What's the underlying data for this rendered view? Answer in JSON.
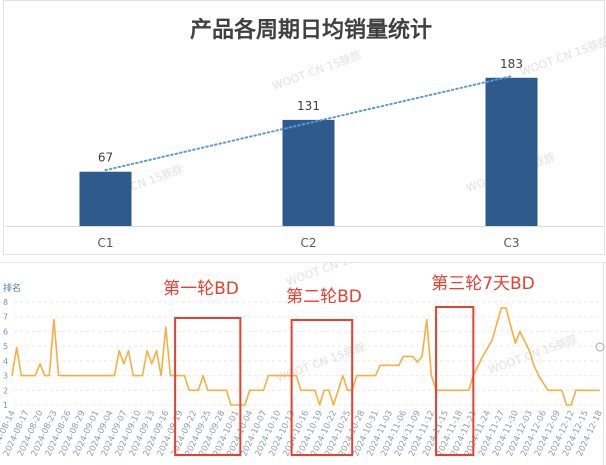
{
  "watermark": {
    "text": "WOOT CN 15豚豚"
  },
  "chart_data": [
    {
      "type": "bar",
      "title": "产品各周期日均销量统计",
      "categories": [
        "C1",
        "C2",
        "C3"
      ],
      "values": [
        67,
        131,
        183
      ],
      "data_labels": [
        "67",
        "131",
        "183"
      ],
      "ylim": [
        0,
        200
      ],
      "trendline": "linear",
      "grid": false,
      "legend": "none",
      "colors": {
        "bar": "#2e5a8c",
        "trendline": "#5b9bd5"
      }
    },
    {
      "type": "line",
      "ylabel": "排名",
      "ylim": [
        1,
        8
      ],
      "yticks": [
        "1",
        "2",
        "3",
        "4",
        "5",
        "6",
        "7",
        "8"
      ],
      "xticks": [
        "2024-08-14",
        "2024-08-17",
        "2024-08-20",
        "2024-08-23",
        "2024-08-26",
        "2024-08-29",
        "2024-09-01",
        "2024-09-04",
        "2024-09-07",
        "2024-09-10",
        "2024-09-13",
        "2024-09-16",
        "2024-09-19",
        "2024-09-22",
        "2024-09-25",
        "2024-09-28",
        "2024-10-01",
        "2024-10-04",
        "2024-10-07",
        "2024-10-10",
        "2024-10-13",
        "2024-10-16",
        "2024-10-19",
        "2024-10-22",
        "2024-10-25",
        "2024-10-28",
        "2024-10-31",
        "2024-11-03",
        "2024-11-06",
        "2024-11-09",
        "2024-11-12",
        "2024-11-15",
        "2024-11-18",
        "2024-11-21",
        "2024-11-24",
        "2024-11-27",
        "2024-11-30",
        "2024-12-03",
        "2024-12-06",
        "2024-12-09",
        "2024-12-12",
        "2024-12-15",
        "2024-12-18"
      ],
      "grid": true,
      "legend": "none",
      "series": [
        {
          "color": "#f5b041",
          "points": [
            [
              "2024-08-14",
              3
            ],
            [
              "2024-08-15",
              4.9
            ],
            [
              "2024-08-16",
              3
            ],
            [
              "2024-08-19",
              3
            ],
            [
              "2024-08-20",
              3.8
            ],
            [
              "2024-08-21",
              3
            ],
            [
              "2024-08-22",
              3
            ],
            [
              "2024-08-23",
              6.8
            ],
            [
              "2024-08-24",
              3
            ],
            [
              "2024-09-05",
              3
            ],
            [
              "2024-09-06",
              4.7
            ],
            [
              "2024-09-07",
              3.8
            ],
            [
              "2024-09-08",
              4.7
            ],
            [
              "2024-09-09",
              3
            ],
            [
              "2024-09-11",
              3
            ],
            [
              "2024-09-12",
              4.7
            ],
            [
              "2024-09-13",
              3.8
            ],
            [
              "2024-09-14",
              4.7
            ],
            [
              "2024-09-15",
              3
            ],
            [
              "2024-09-16",
              6.3
            ],
            [
              "2024-09-17",
              3
            ],
            [
              "2024-09-20",
              3
            ],
            [
              "2024-09-21",
              2
            ],
            [
              "2024-09-23",
              2
            ],
            [
              "2024-09-24",
              3
            ],
            [
              "2024-09-25",
              2
            ],
            [
              "2024-09-29",
              2
            ],
            [
              "2024-09-30",
              1
            ],
            [
              "2024-10-03",
              1
            ],
            [
              "2024-10-04",
              2
            ],
            [
              "2024-10-07",
              2
            ],
            [
              "2024-10-08",
              3
            ],
            [
              "2024-10-14",
              3
            ],
            [
              "2024-10-15",
              2
            ],
            [
              "2024-10-18",
              2
            ],
            [
              "2024-10-19",
              1
            ],
            [
              "2024-10-20",
              2
            ],
            [
              "2024-10-21",
              2
            ],
            [
              "2024-10-22",
              1
            ],
            [
              "2024-10-23",
              2
            ],
            [
              "2024-10-24",
              3
            ],
            [
              "2024-10-25",
              2
            ],
            [
              "2024-10-26",
              2
            ],
            [
              "2024-10-27",
              3
            ],
            [
              "2024-10-31",
              3
            ],
            [
              "2024-11-01",
              3.7
            ],
            [
              "2024-11-05",
              3.7
            ],
            [
              "2024-11-06",
              4.3
            ],
            [
              "2024-11-08",
              4.3
            ],
            [
              "2024-11-09",
              3.9
            ],
            [
              "2024-11-10",
              4.3
            ],
            [
              "2024-11-11",
              6.8
            ],
            [
              "2024-11-12",
              3
            ],
            [
              "2024-11-13",
              2
            ],
            [
              "2024-11-20",
              2
            ],
            [
              "2024-11-21",
              3
            ],
            [
              "2024-11-23",
              4.3
            ],
            [
              "2024-11-25",
              5.4
            ],
            [
              "2024-11-27",
              7.6
            ],
            [
              "2024-11-28",
              7.6
            ],
            [
              "2024-11-29",
              6.4
            ],
            [
              "2024-11-30",
              5.2
            ],
            [
              "2024-12-01",
              6
            ],
            [
              "2024-12-03",
              4.7
            ],
            [
              "2024-12-04",
              3.7
            ],
            [
              "2024-12-05",
              3
            ],
            [
              "2024-12-07",
              2
            ],
            [
              "2024-12-10",
              2
            ],
            [
              "2024-12-11",
              1
            ],
            [
              "2024-12-12",
              1
            ],
            [
              "2024-12-13",
              2
            ],
            [
              "2024-12-18",
              2
            ]
          ]
        }
      ],
      "annotations": [
        {
          "label": "第一轮BD",
          "start": "2024-09-18",
          "end": "2024-10-02",
          "color": "#e8402f"
        },
        {
          "label": "第二轮BD",
          "start": "2024-10-13",
          "end": "2024-10-26",
          "color": "#e8402f"
        },
        {
          "label": "第三轮7天BD",
          "start": "2024-11-13",
          "end": "2024-11-21",
          "color": "#e8402f"
        }
      ]
    }
  ]
}
